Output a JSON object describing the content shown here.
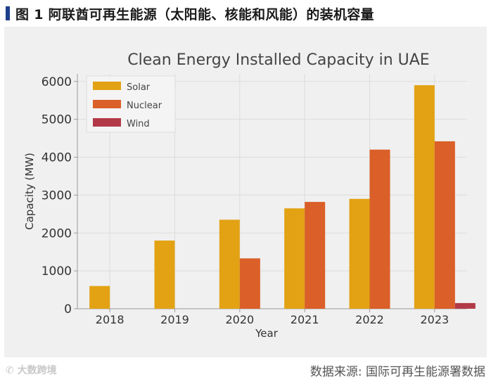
{
  "header": {
    "figure_title": "图 1  阿联酋可再生能源（太阳能、核能和风能）的装机容量"
  },
  "chart_data": {
    "type": "bar",
    "title": "Clean Energy Installed Capacity in UAE",
    "xlabel": "Year",
    "ylabel": "Capacity (MW)",
    "ylim": [
      0,
      6200
    ],
    "yticks": [
      0,
      1000,
      2000,
      3000,
      4000,
      5000,
      6000
    ],
    "grid": true,
    "legend_position": "top-left",
    "categories": [
      "2018",
      "2019",
      "2020",
      "2021",
      "2022",
      "2023"
    ],
    "series": [
      {
        "name": "Solar",
        "color": "#e2a214",
        "values": [
          600,
          1800,
          2350,
          2650,
          2900,
          5900
        ]
      },
      {
        "name": "Nuclear",
        "color": "#da5f28",
        "values": [
          0,
          0,
          1330,
          2820,
          4200,
          4420
        ]
      },
      {
        "name": "Wind",
        "color": "#b23a48",
        "values": [
          0,
          0,
          0,
          0,
          0,
          150
        ]
      }
    ]
  },
  "footer": {
    "watermark": "大数跨境",
    "source": "数据来源: 国际可再生能源署数据"
  }
}
